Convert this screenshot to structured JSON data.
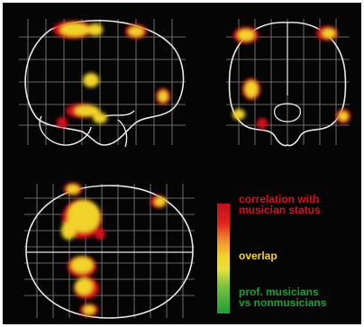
{
  "legend": {
    "correlation_label": "correlation with\nmusician status",
    "overlap_label": "overlap",
    "prof_label": "prof. musicians\nvs nonmusicians"
  },
  "colors": {
    "background": "#050505",
    "outline": "#e8e8e8",
    "grid": "#bdbdbd",
    "correlation": "#d8101c",
    "overlap": "#f2d32a",
    "contrast": "#1f9c3a"
  },
  "views": [
    {
      "name": "sagittal",
      "grid_cols": 10,
      "grid_rows": 6
    },
    {
      "name": "coronal",
      "grid_cols": 8,
      "grid_rows": 6
    },
    {
      "name": "axial",
      "grid_cols": 10,
      "grid_rows": 8
    }
  ]
}
